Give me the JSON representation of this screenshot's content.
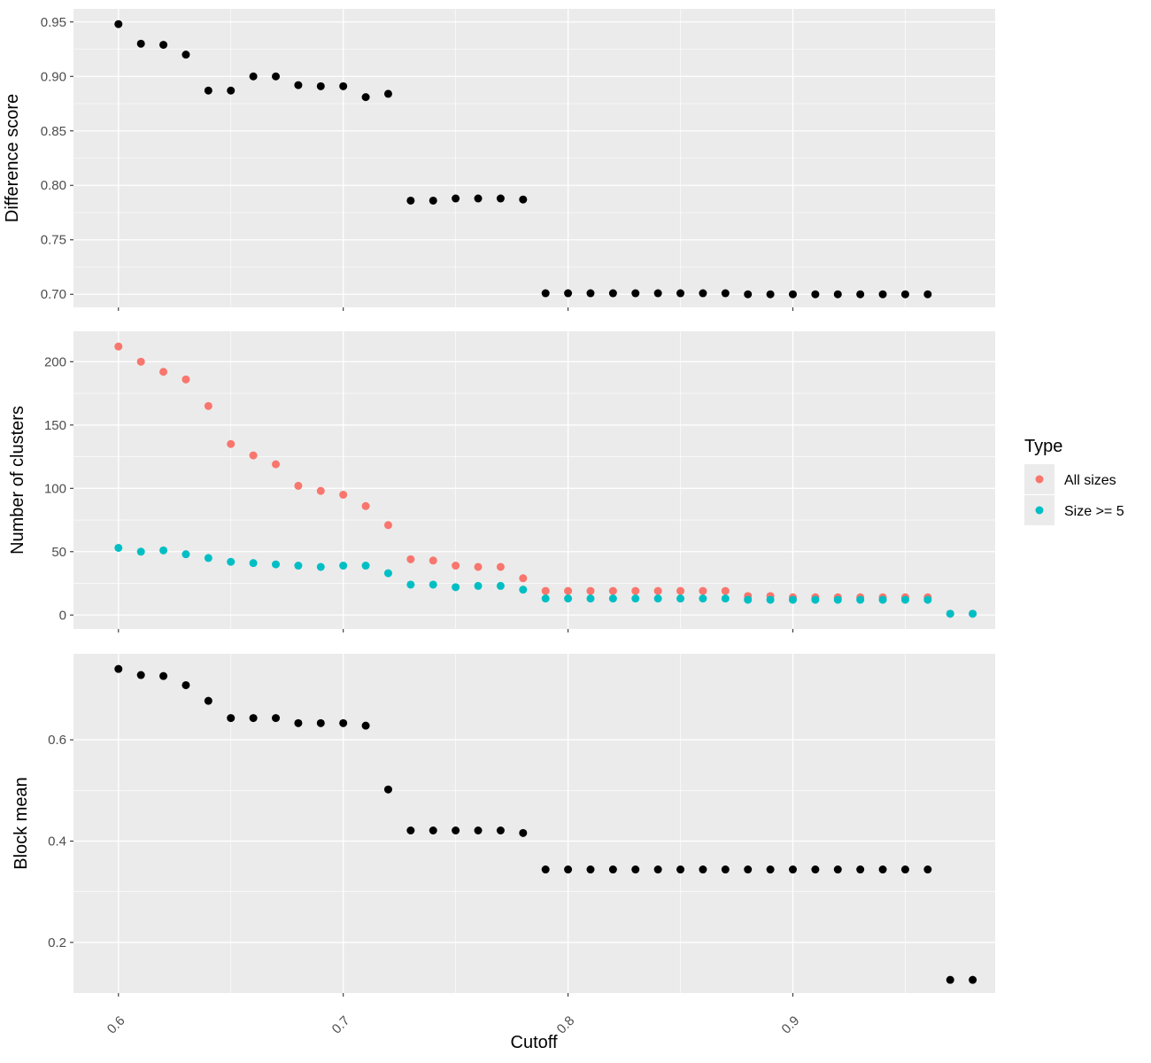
{
  "chart_data": {
    "type": "scatter",
    "xlabel": "Cutoff",
    "xlim": [
      0.58,
      0.99
    ],
    "x_ticks": [
      0.6,
      0.7,
      0.8,
      0.9
    ],
    "x_tick_labels": [
      "0.6",
      "0.7",
      "0.8",
      "0.9"
    ],
    "x_tick_label_rotation": "45 degrees",
    "grid": true,
    "legend": {
      "title": "Type",
      "position": "right",
      "entries": [
        {
          "label": "All sizes",
          "color": "#F8766D"
        },
        {
          "label": "Size >= 5",
          "color": "#00BFC4"
        }
      ]
    },
    "panels": [
      {
        "ylabel": "Difference score",
        "ylim": [
          0.688,
          0.962
        ],
        "y_ticks": [
          0.7,
          0.75,
          0.8,
          0.85,
          0.9,
          0.95
        ],
        "y_tick_labels": [
          "0.70",
          "0.75",
          "0.80",
          "0.85",
          "0.90",
          "0.95"
        ],
        "series": [
          {
            "color": "#000000",
            "x": [
              0.6,
              0.61,
              0.62,
              0.63,
              0.64,
              0.65,
              0.66,
              0.67,
              0.68,
              0.69,
              0.7,
              0.71,
              0.72,
              0.73,
              0.74,
              0.75,
              0.76,
              0.77,
              0.78,
              0.79,
              0.8,
              0.81,
              0.82,
              0.83,
              0.84,
              0.85,
              0.86,
              0.87,
              0.88,
              0.89,
              0.9,
              0.91,
              0.92,
              0.93,
              0.94,
              0.95,
              0.96
            ],
            "y": [
              0.948,
              0.93,
              0.929,
              0.92,
              0.887,
              0.887,
              0.9,
              0.9,
              0.892,
              0.891,
              0.891,
              0.881,
              0.884,
              0.786,
              0.786,
              0.788,
              0.788,
              0.788,
              0.787,
              0.701,
              0.701,
              0.701,
              0.701,
              0.701,
              0.701,
              0.701,
              0.701,
              0.701,
              0.7,
              0.7,
              0.7,
              0.7,
              0.7,
              0.7,
              0.7,
              0.7,
              0.7
            ]
          }
        ]
      },
      {
        "ylabel": "Number of clusters",
        "ylim": [
          -11,
          224
        ],
        "y_ticks": [
          0,
          50,
          100,
          150,
          200
        ],
        "y_tick_labels": [
          "0",
          "50",
          "100",
          "150",
          "200"
        ],
        "series": [
          {
            "name": "All sizes",
            "color": "#F8766D",
            "x": [
              0.6,
              0.61,
              0.62,
              0.63,
              0.64,
              0.65,
              0.66,
              0.67,
              0.68,
              0.69,
              0.7,
              0.71,
              0.72,
              0.73,
              0.74,
              0.75,
              0.76,
              0.77,
              0.78,
              0.79,
              0.8,
              0.81,
              0.82,
              0.83,
              0.84,
              0.85,
              0.86,
              0.87,
              0.88,
              0.89,
              0.9,
              0.91,
              0.92,
              0.93,
              0.94,
              0.95,
              0.96,
              0.97,
              0.98
            ],
            "y": [
              212,
              200,
              192,
              186,
              165,
              135,
              126,
              119,
              102,
              98,
              95,
              86,
              71,
              44,
              43,
              39,
              38,
              38,
              29,
              19,
              19,
              19,
              19,
              19,
              19,
              19,
              19,
              19,
              15,
              15,
              14,
              14,
              14,
              14,
              14,
              14,
              14,
              1,
              1
            ]
          },
          {
            "name": "Size >= 5",
            "color": "#00BFC4",
            "x": [
              0.6,
              0.61,
              0.62,
              0.63,
              0.64,
              0.65,
              0.66,
              0.67,
              0.68,
              0.69,
              0.7,
              0.71,
              0.72,
              0.73,
              0.74,
              0.75,
              0.76,
              0.77,
              0.78,
              0.79,
              0.8,
              0.81,
              0.82,
              0.83,
              0.84,
              0.85,
              0.86,
              0.87,
              0.88,
              0.89,
              0.9,
              0.91,
              0.92,
              0.93,
              0.94,
              0.95,
              0.96,
              0.97,
              0.98
            ],
            "y": [
              53,
              50,
              51,
              48,
              45,
              42,
              41,
              40,
              39,
              38,
              39,
              39,
              33,
              24,
              24,
              22,
              23,
              23,
              20,
              13,
              13,
              13,
              13,
              13,
              13,
              13,
              13,
              13,
              12,
              12,
              12,
              12,
              12,
              12,
              12,
              12,
              12,
              1,
              1
            ]
          }
        ]
      },
      {
        "ylabel": "Block mean",
        "ylim": [
          0.1,
          0.77
        ],
        "y_ticks": [
          0.2,
          0.4,
          0.6
        ],
        "y_tick_labels": [
          "0.2",
          "0.4",
          "0.6"
        ],
        "series": [
          {
            "color": "#000000",
            "x": [
              0.6,
              0.61,
              0.62,
              0.63,
              0.64,
              0.65,
              0.66,
              0.67,
              0.68,
              0.69,
              0.7,
              0.71,
              0.72,
              0.73,
              0.74,
              0.75,
              0.76,
              0.77,
              0.78,
              0.79,
              0.8,
              0.81,
              0.82,
              0.83,
              0.84,
              0.85,
              0.86,
              0.87,
              0.88,
              0.89,
              0.9,
              0.91,
              0.92,
              0.93,
              0.94,
              0.95,
              0.96,
              0.97,
              0.98
            ],
            "y": [
              0.74,
              0.728,
              0.726,
              0.708,
              0.677,
              0.643,
              0.643,
              0.643,
              0.633,
              0.633,
              0.633,
              0.628,
              0.502,
              0.421,
              0.421,
              0.421,
              0.421,
              0.421,
              0.416,
              0.344,
              0.344,
              0.344,
              0.344,
              0.344,
              0.344,
              0.344,
              0.344,
              0.344,
              0.344,
              0.344,
              0.344,
              0.344,
              0.344,
              0.344,
              0.344,
              0.344,
              0.344,
              0.126,
              0.126
            ]
          }
        ]
      }
    ]
  }
}
